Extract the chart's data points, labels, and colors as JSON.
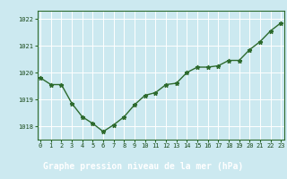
{
  "x": [
    0,
    1,
    2,
    3,
    4,
    5,
    6,
    7,
    8,
    9,
    10,
    11,
    12,
    13,
    14,
    15,
    16,
    17,
    18,
    19,
    20,
    21,
    22,
    23
  ],
  "y": [
    1019.8,
    1019.55,
    1019.55,
    1018.85,
    1018.35,
    1018.1,
    1017.8,
    1018.05,
    1018.35,
    1018.8,
    1019.15,
    1019.25,
    1019.55,
    1019.6,
    1020.0,
    1020.2,
    1020.2,
    1020.25,
    1020.45,
    1020.45,
    1020.85,
    1021.15,
    1021.55,
    1021.85
  ],
  "line_color": "#2d6a2d",
  "marker": "*",
  "marker_size": 3.5,
  "line_width": 1.0,
  "bg_color": "#cce9f0",
  "grid_color": "#ffffff",
  "xlabel": "Graphe pression niveau de la mer (hPa)",
  "xlabel_color": "#ffffff",
  "xlabel_fontsize": 7.0,
  "xlabel_bg": "#2d6a2d",
  "ytick_labels": [
    "1018",
    "1019",
    "1020",
    "1021",
    "1022"
  ],
  "yticks": [
    1018,
    1019,
    1020,
    1021,
    1022
  ],
  "ylim": [
    1017.5,
    1022.3
  ],
  "xticks": [
    0,
    1,
    2,
    3,
    4,
    5,
    6,
    7,
    8,
    9,
    10,
    11,
    12,
    13,
    14,
    15,
    16,
    17,
    18,
    19,
    20,
    21,
    22,
    23
  ],
  "tick_fontsize": 5.0,
  "tick_color": "#1a4a1a",
  "spine_color": "#2d6a2d",
  "xlim": [
    -0.3,
    23.3
  ]
}
